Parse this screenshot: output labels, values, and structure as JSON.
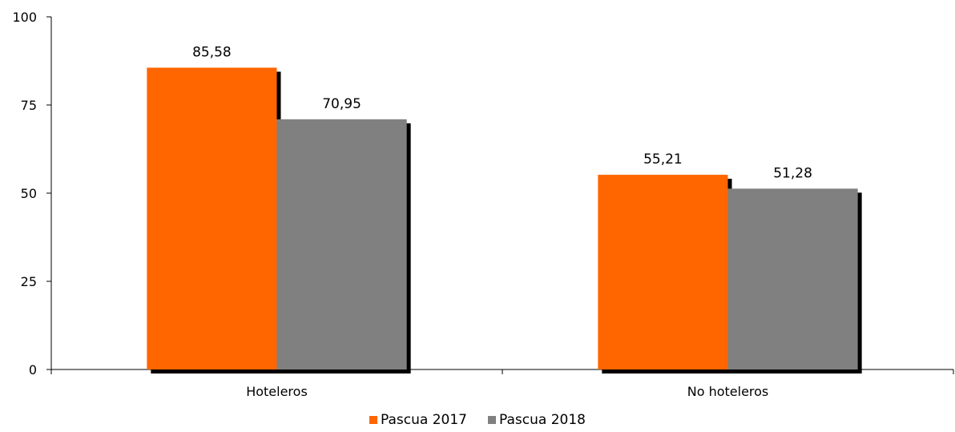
{
  "chart_data": {
    "type": "bar",
    "categories": [
      "Hoteleros",
      "No hoteleros"
    ],
    "series": [
      {
        "name": "Pascua 2017",
        "values": [
          85.58,
          55.21
        ],
        "labels": [
          "85,58",
          "55,21"
        ],
        "color": "#ff6600"
      },
      {
        "name": "Pascua 2018",
        "values": [
          70.95,
          51.28
        ],
        "labels": [
          "70,95",
          "51,28"
        ],
        "color": "#808080"
      }
    ],
    "ylim": [
      0,
      100
    ],
    "yticks": [
      0,
      25,
      50,
      75,
      100
    ],
    "ytick_labels": [
      "0",
      "25",
      "50",
      "75",
      "100"
    ],
    "title": "",
    "xlabel": "",
    "ylabel": "",
    "grid": false,
    "legend_position": "bottom"
  }
}
